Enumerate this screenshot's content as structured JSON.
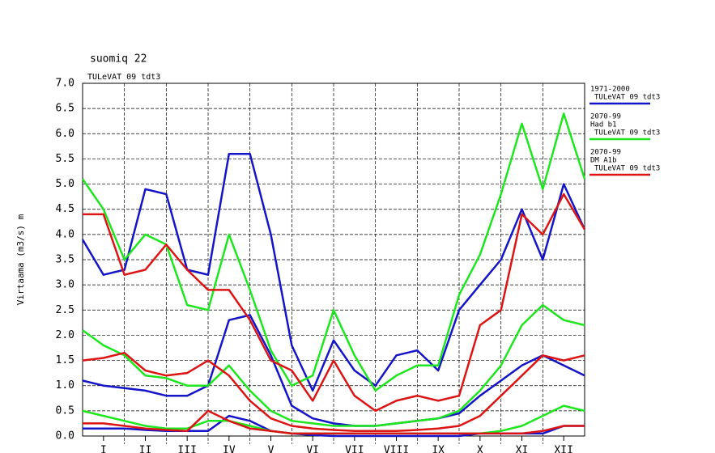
{
  "chart_data": {
    "type": "line",
    "title": "suomiq 22",
    "subtitle": "TULeVAT 09 tdt3",
    "y_label": "Virtaama (m3/s) m",
    "x": [
      0,
      0.5,
      1,
      1.5,
      2,
      2.5,
      3,
      3.5,
      4,
      4.5,
      5,
      5.5,
      6,
      6.5,
      7,
      7.5,
      8,
      8.5,
      9,
      9.5,
      10,
      10.5,
      11,
      11.5,
      12
    ],
    "xlim": [
      0,
      12
    ],
    "xticks": [
      {
        "value": 0.5,
        "label": "I"
      },
      {
        "value": 1.5,
        "label": "II"
      },
      {
        "value": 2.5,
        "label": "III"
      },
      {
        "value": 3.5,
        "label": "IV"
      },
      {
        "value": 4.5,
        "label": "V"
      },
      {
        "value": 5.5,
        "label": "VI"
      },
      {
        "value": 6.5,
        "label": "VII"
      },
      {
        "value": 7.5,
        "label": "VIII"
      },
      {
        "value": 8.5,
        "label": "IX"
      },
      {
        "value": 9.5,
        "label": "X"
      },
      {
        "value": 10.5,
        "label": "XI"
      },
      {
        "value": 11.5,
        "label": "XII"
      }
    ],
    "ylim": [
      0,
      7
    ],
    "yticks": [
      {
        "value": 0,
        "label": "0.0"
      },
      {
        "value": 0.5,
        "label": "0.5"
      },
      {
        "value": 1,
        "label": "1.0"
      },
      {
        "value": 1.5,
        "label": "1.5"
      },
      {
        "value": 2,
        "label": "2.0"
      },
      {
        "value": 2.5,
        "label": "2.5"
      },
      {
        "value": 3,
        "label": "3.0"
      },
      {
        "value": 3.5,
        "label": "3.5"
      },
      {
        "value": 4,
        "label": "4.0"
      },
      {
        "value": 4.5,
        "label": "4.5"
      },
      {
        "value": 5,
        "label": "5.0"
      },
      {
        "value": 5.5,
        "label": "5.5"
      },
      {
        "value": 6,
        "label": "6.0"
      },
      {
        "value": 6.5,
        "label": "6.5"
      },
      {
        "value": 7,
        "label": "7.0"
      }
    ],
    "grid": true,
    "series": [
      {
        "name": [
          "1971-2000",
          "TULeVAT 09 tdt3"
        ],
        "color": "#1414c8",
        "lines": [
          {
            "values": [
              3.9,
              3.2,
              3.3,
              4.9,
              4.8,
              3.3,
              3.2,
              5.6,
              5.6,
              4.0,
              1.8,
              0.9,
              1.9,
              1.3,
              1.0,
              1.6,
              1.7,
              1.3,
              2.5,
              3.0,
              3.5,
              4.5,
              3.5,
              5.0,
              4.1
            ]
          },
          {
            "values": [
              1.1,
              1.0,
              0.95,
              0.9,
              0.8,
              0.8,
              1.0,
              2.3,
              2.4,
              1.6,
              0.6,
              0.35,
              0.25,
              0.2,
              0.2,
              0.25,
              0.3,
              0.35,
              0.45,
              0.8,
              1.1,
              1.4,
              1.6,
              1.4,
              1.2
            ]
          },
          {
            "values": [
              0.15,
              0.15,
              0.15,
              0.12,
              0.1,
              0.1,
              0.1,
              0.4,
              0.3,
              0.1,
              0.05,
              0.02,
              0,
              0,
              0,
              0,
              0,
              0,
              0,
              0.05,
              0.05,
              0.05,
              0.05,
              0.2,
              0.2
            ]
          }
        ]
      },
      {
        "name": [
          "2070-99",
          "Had b1",
          "TULeVAT 09 tdt3"
        ],
        "color": "#1ee61e",
        "lines": [
          {
            "values": [
              5.1,
              4.5,
              3.5,
              4.0,
              3.8,
              2.6,
              2.5,
              4.0,
              2.9,
              1.7,
              1.0,
              1.2,
              2.5,
              1.6,
              0.9,
              1.2,
              1.4,
              1.4,
              2.8,
              3.6,
              4.8,
              6.2,
              4.9,
              6.4,
              5.1
            ]
          },
          {
            "values": [
              2.1,
              1.8,
              1.6,
              1.2,
              1.15,
              1.0,
              1.0,
              1.4,
              0.9,
              0.5,
              0.3,
              0.25,
              0.2,
              0.2,
              0.2,
              0.25,
              0.3,
              0.35,
              0.5,
              0.9,
              1.4,
              2.2,
              2.6,
              2.3,
              2.2
            ]
          },
          {
            "values": [
              0.5,
              0.4,
              0.3,
              0.2,
              0.15,
              0.15,
              0.3,
              0.3,
              0.2,
              0.1,
              0.05,
              0.05,
              0.05,
              0.05,
              0.05,
              0.05,
              0.05,
              0.05,
              0.05,
              0.05,
              0.1,
              0.2,
              0.4,
              0.6,
              0.5
            ]
          }
        ]
      },
      {
        "name": [
          "2070-99",
          "DM A1b",
          "TULeVAT 09 tdt3"
        ],
        "color": "#dc1414",
        "lines": [
          {
            "values": [
              4.4,
              4.4,
              3.2,
              3.3,
              3.8,
              3.3,
              2.9,
              2.9,
              2.3,
              1.5,
              1.3,
              0.7,
              1.5,
              0.8,
              0.5,
              0.7,
              0.8,
              0.7,
              0.8,
              2.2,
              2.5,
              4.4,
              4.0,
              4.8,
              4.1
            ]
          },
          {
            "values": [
              1.5,
              1.55,
              1.65,
              1.3,
              1.2,
              1.25,
              1.5,
              1.2,
              0.7,
              0.35,
              0.2,
              0.15,
              0.12,
              0.1,
              0.1,
              0.1,
              0.12,
              0.15,
              0.2,
              0.4,
              0.8,
              1.2,
              1.6,
              1.5,
              1.6
            ]
          },
          {
            "values": [
              0.25,
              0.25,
              0.2,
              0.15,
              0.12,
              0.1,
              0.5,
              0.3,
              0.15,
              0.1,
              0.05,
              0.05,
              0.05,
              0.05,
              0.05,
              0.05,
              0.05,
              0.05,
              0.05,
              0.05,
              0.05,
              0.05,
              0.1,
              0.2,
              0.2
            ]
          }
        ]
      }
    ]
  }
}
